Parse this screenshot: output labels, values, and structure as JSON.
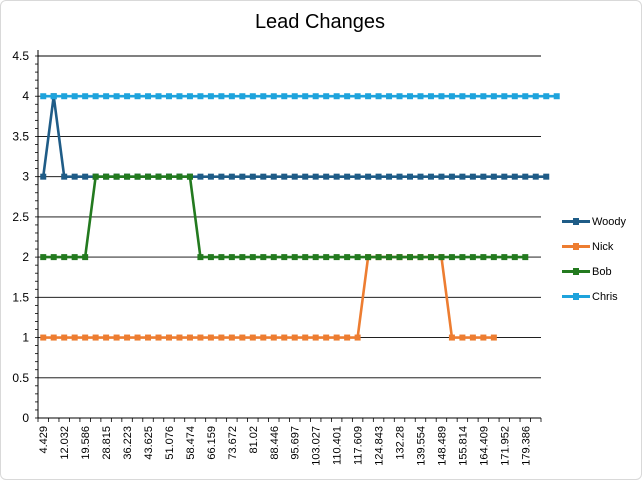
{
  "chart_data": {
    "type": "line",
    "title": "Lead Changes",
    "xlabel": "",
    "ylabel": "",
    "ylim": [
      0,
      4.5
    ],
    "ytick_step": 0.5,
    "grid": true,
    "legend_position": "right",
    "x_tick_labels": [
      "4.429",
      "12.032",
      "19.586",
      "28.815",
      "36.223",
      "43.625",
      "51.076",
      "58.474",
      "66.159",
      "73.672",
      "81.02",
      "88.446",
      "95.697",
      "103.027",
      "110.401",
      "117.609",
      "124.843",
      "132.28",
      "139.554",
      "148.489",
      "155.814",
      "164.409",
      "171.952",
      "179.386"
    ],
    "x_label_every": 2,
    "series": [
      {
        "name": "Woody",
        "color": "#1f5c87",
        "values": [
          3,
          4,
          3,
          3,
          3,
          3,
          3,
          3,
          3,
          3,
          3,
          3,
          3,
          3,
          3,
          3,
          3,
          3,
          3,
          3,
          3,
          3,
          3,
          3,
          3,
          3,
          3,
          3,
          3,
          3,
          3,
          3,
          3,
          3,
          3,
          3,
          3,
          3,
          3,
          3,
          3,
          3,
          3,
          3,
          3,
          3,
          3,
          3,
          3
        ]
      },
      {
        "name": "Nick",
        "color": "#ed7d31",
        "values": [
          1,
          1,
          1,
          1,
          1,
          1,
          1,
          1,
          1,
          1,
          1,
          1,
          1,
          1,
          1,
          1,
          1,
          1,
          1,
          1,
          1,
          1,
          1,
          1,
          1,
          1,
          1,
          1,
          1,
          1,
          1,
          2,
          2,
          2,
          2,
          2,
          2,
          2,
          2,
          1,
          1,
          1,
          1,
          1
        ]
      },
      {
        "name": "Bob",
        "color": "#237a1f",
        "values": [
          2,
          2,
          2,
          2,
          2,
          3,
          3,
          3,
          3,
          3,
          3,
          3,
          3,
          3,
          3,
          2,
          2,
          2,
          2,
          2,
          2,
          2,
          2,
          2,
          2,
          2,
          2,
          2,
          2,
          2,
          2,
          2,
          2,
          2,
          2,
          2,
          2,
          2,
          2,
          2,
          2,
          2,
          2,
          2,
          2,
          2,
          2
        ]
      },
      {
        "name": "Chris",
        "color": "#1ea3dc",
        "values": [
          4,
          4,
          4,
          4,
          4,
          4,
          4,
          4,
          4,
          4,
          4,
          4,
          4,
          4,
          4,
          4,
          4,
          4,
          4,
          4,
          4,
          4,
          4,
          4,
          4,
          4,
          4,
          4,
          4,
          4,
          4,
          4,
          4,
          4,
          4,
          4,
          4,
          4,
          4,
          4,
          4,
          4,
          4,
          4,
          4,
          4,
          4,
          4,
          4,
          4
        ]
      }
    ]
  }
}
